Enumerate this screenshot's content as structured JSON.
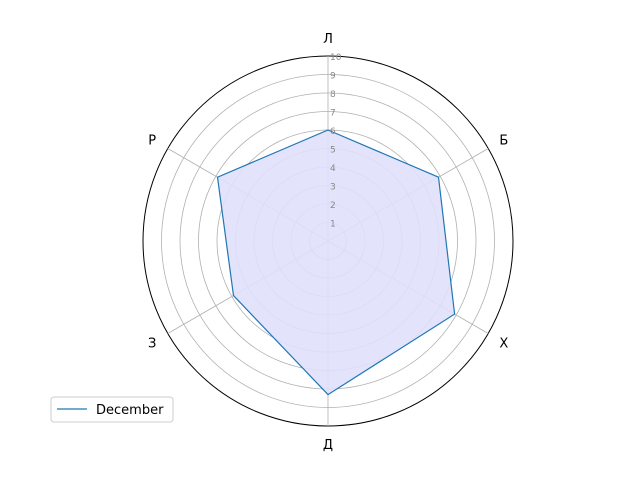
{
  "chart_data": {
    "type": "radar",
    "categories": [
      "Л",
      "Б",
      "Х",
      "Д",
      "З",
      "Р"
    ],
    "series": [
      {
        "name": "December",
        "values": [
          6,
          6.9,
          7.9,
          8.3,
          5.9,
          6.9
        ]
      }
    ],
    "rlim": [
      0,
      10
    ],
    "rticks": [
      "1",
      "2",
      "3",
      "4",
      "5",
      "6",
      "7",
      "8",
      "9",
      "10"
    ],
    "grid": true,
    "legend_position": "lower-left",
    "colors": {
      "line": "#1f77b4",
      "fill": "#e0e0fc",
      "grid": "#b0b0b0",
      "outer": "#000000",
      "tick_text": "#888888"
    }
  }
}
